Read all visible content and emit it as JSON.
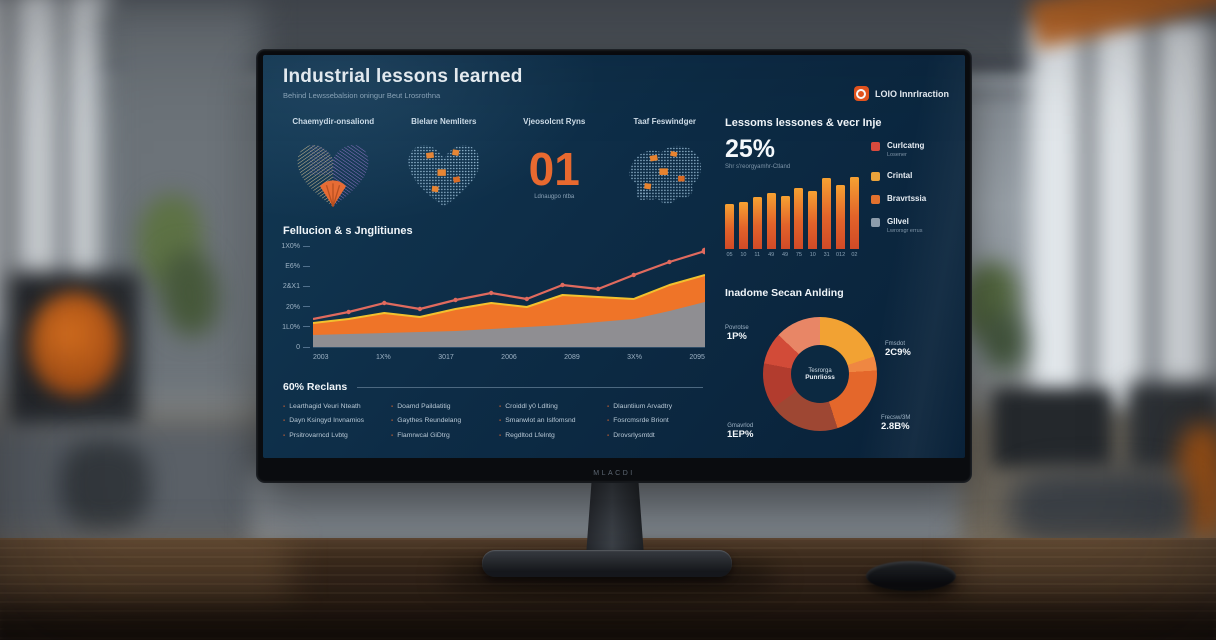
{
  "colors": {
    "accent_orange": "#e8692f",
    "screen_bg": "#0d2c46",
    "bar_top": "#f6a132",
    "bar_bottom": "#d14a27",
    "trend_line": "#e06a5e",
    "area_edge_yellow": "#f2c12e"
  },
  "screen": {
    "header": {
      "title": "Industrial lessons learned",
      "subtitle": "Behind Lewssebalsion oningur Beut Lrosrothna"
    },
    "logo": {
      "label": "LOIO Innrlraction"
    },
    "stat_columns": [
      {
        "label": "Chaemydir-onsaliond"
      },
      {
        "label": "Blelare Nemliters"
      },
      {
        "label": "Vjeosolcnt Ryns",
        "number": "01",
        "caption": "Ldnaugpo ntba"
      },
      {
        "label": "Taaf Feswindger"
      }
    ],
    "right_panel": {
      "title": "Lessoms lessones & vecr Inje",
      "stat": {
        "value": "25%",
        "caption": "Shr s'reorgyamhr-Ctland"
      },
      "legend": [
        {
          "label": "Curlcatng",
          "sub": "Losener",
          "color": "#d94a3d"
        },
        {
          "label": "Crintal",
          "sub": "",
          "color": "#e9a23b"
        },
        {
          "label": "Bravrtssia",
          "sub": "",
          "color": "#e2712e"
        },
        {
          "label": "Gllvel",
          "sub": "Lwrorsgr errus",
          "color": "#8d9cab"
        }
      ]
    },
    "area_section": {
      "title": "Fellucion & s Jnglitiunes"
    },
    "donut_section": {
      "title": "Inadome Secan Anlding",
      "center_line1": "Tesrorga",
      "center_line2": "Punrlioss",
      "labels": [
        {
          "name": "Povrotse",
          "value": "1P%",
          "pos": "top-left"
        },
        {
          "name": "Fmsdot",
          "value": "2C9%",
          "pos": "top-right"
        },
        {
          "name": "Frecsw/3M",
          "value": "2.8B%",
          "pos": "bottom-right"
        },
        {
          "name": "Gmavrlod",
          "value": "1EP%",
          "pos": "bottom-left"
        }
      ]
    },
    "regions_section": {
      "title": "60% Reclans",
      "columns": [
        [
          "Learthagid Veuri Nteath",
          "Dayn Ksingyd Invnamios",
          "Prsitrovarncd Lvbtg"
        ],
        [
          "Doamd Paildatitig",
          "Gaythes Reundelang",
          "Flamrwcal GiDtrg"
        ],
        [
          "Croiddl y0 Ldlting",
          "Smanwlot an Islfomsnd",
          "Regdltod Lfelntg"
        ],
        [
          "Dlauntiium Arvadtry",
          "Fosrcmsrde Briont",
          "Drovsrlysmtdt"
        ]
      ]
    },
    "monitor_brand": "MLACDI"
  },
  "chart_data": [
    {
      "type": "bar",
      "title": "Lessoms lessones & vecr Inje",
      "categories": [
        "05",
        "10",
        "11",
        "49",
        "49",
        "75",
        "10",
        "31",
        "012",
        "02"
      ],
      "values": [
        62,
        65,
        72,
        78,
        73,
        85,
        80,
        98,
        89,
        100
      ],
      "ylim": [
        0,
        100
      ],
      "legend_position": "right"
    },
    {
      "type": "area",
      "title": "Fellucion & s Jnglitiunes",
      "x_ticks": [
        "2003",
        "1X%",
        "3017",
        "2006",
        "2089",
        "3X%",
        "2095"
      ],
      "y_ticks": [
        "1X0%",
        "E6%",
        "2&X1",
        "20%",
        "1L0%",
        "0"
      ],
      "ylim": [
        0,
        100
      ],
      "grid": false,
      "series": [
        {
          "name": "base-gray",
          "color": "#7e93a4",
          "values": [
            12,
            13,
            14,
            15,
            16,
            18,
            20,
            22,
            25,
            28,
            36,
            45
          ]
        },
        {
          "name": "mid-orange",
          "color": "#ef7428",
          "edge_color": "#f2c12e",
          "values": [
            24,
            28,
            34,
            30,
            38,
            44,
            40,
            52,
            50,
            48,
            62,
            72
          ]
        },
        {
          "name": "trend-line",
          "color": "#e06a5e",
          "values": [
            28,
            35,
            44,
            38,
            47,
            54,
            48,
            62,
            58,
            72,
            85,
            96
          ]
        }
      ]
    },
    {
      "type": "pie",
      "title": "Inadome Secan Anlding",
      "segments": [
        {
          "label": "Fmsdot",
          "value": 20,
          "color": "#f2a233"
        },
        {
          "label": "right-sliver",
          "value": 4,
          "color": "#ef8742"
        },
        {
          "label": "Frecsw/3M",
          "value": 21,
          "color": "#e4672b"
        },
        {
          "label": "bottom-brick",
          "value": 20,
          "color": "#9e4733"
        },
        {
          "label": "Gmavrlod",
          "value": 13,
          "color": "#b23c2e"
        },
        {
          "label": "Povrotse",
          "value": 9,
          "color": "#d24b38"
        },
        {
          "label": "top-salmon",
          "value": 13,
          "color": "#e88666"
        }
      ]
    }
  ]
}
